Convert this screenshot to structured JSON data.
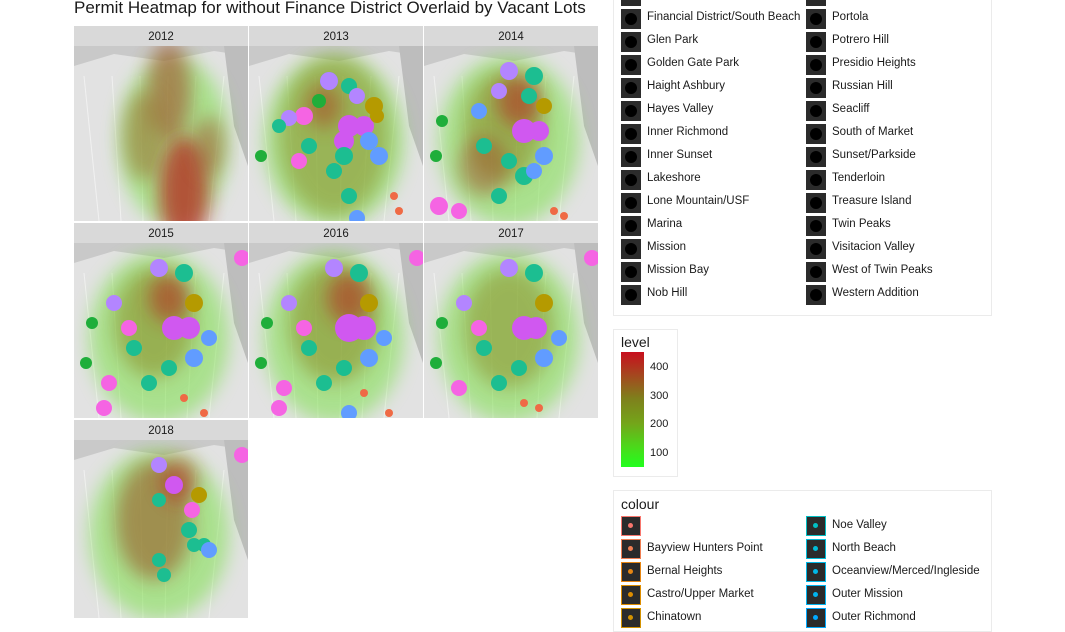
{
  "chart_data": {
    "type": "heatmap",
    "title": "Permit Heatmap for without Finance District Overlaid by Vacant Lots",
    "facets": [
      "2012",
      "2013",
      "2014",
      "2015",
      "2016",
      "2017",
      "2018"
    ],
    "fill_legend": {
      "title": "level",
      "ticks": [
        100,
        200,
        300,
        400
      ],
      "range": [
        50,
        450
      ],
      "low_color": "#22ff1e",
      "high_color": "#c80f1e"
    },
    "district_legend_col1": [
      "Financial District/South Beach",
      "Glen Park",
      "Golden Gate Park",
      "Haight Ashbury",
      "Hayes Valley",
      "Inner Richmond",
      "Inner Sunset",
      "Lakeshore",
      "Lone Mountain/USF",
      "Marina",
      "Mission",
      "Mission Bay",
      "Nob Hill"
    ],
    "district_legend_col2": [
      "Portola",
      "Potrero Hill",
      "Presidio Heights",
      "Russian Hill",
      "Seacliff",
      "South of Market",
      "Sunset/Parkside",
      "Tenderloin",
      "Treasure Island",
      "Twin Peaks",
      "Visitacion Valley",
      "West of Twin Peaks",
      "Western Addition"
    ],
    "colour_legend": {
      "title": "colour",
      "col1": [
        {
          "label": "",
          "color": "#f8766d"
        },
        {
          "label": "Bayview Hunters Point",
          "color": "#f07e52"
        },
        {
          "label": "Bernal Heights",
          "color": "#e68613"
        },
        {
          "label": "Castro/Upper Market",
          "color": "#dd8d00"
        },
        {
          "label": "Chinatown",
          "color": "#d39200"
        }
      ],
      "col2": [
        {
          "label": "Noe Valley",
          "color": "#00bfc4"
        },
        {
          "label": "North Beach",
          "color": "#00bcd8"
        },
        {
          "label": "Oceanview/Merced/Ingleside",
          "color": "#00b8e7"
        },
        {
          "label": "Outer Mission",
          "color": "#00b4f0"
        },
        {
          "label": "Outer Richmond",
          "color": "#00a9ff"
        }
      ]
    }
  },
  "colors": {
    "pink": "#f564e3",
    "magenta": "#d058f0",
    "purple": "#b385ff",
    "blue": "#619cff",
    "teal": "#1cbe91",
    "green": "#1fae3a",
    "orange": "#ef6a45",
    "olive": "#b59a00",
    "hotpink": "#ff4fa0"
  }
}
